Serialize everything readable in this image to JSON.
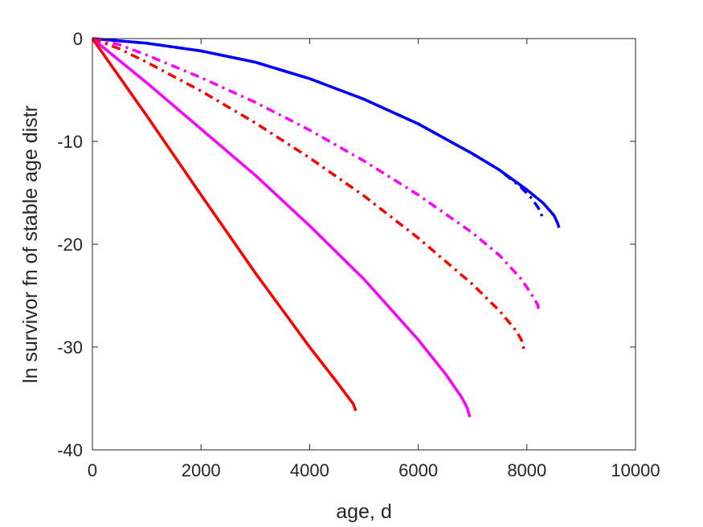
{
  "chart_data": {
    "type": "line",
    "xlabel": "age, d",
    "ylabel": "ln survivor fn of stable age distr",
    "xlim": [
      0,
      10000
    ],
    "ylim": [
      -40,
      0
    ],
    "xticks": [
      0,
      2000,
      4000,
      6000,
      8000,
      10000
    ],
    "yticks": [
      0,
      -10,
      -20,
      -30,
      -40
    ],
    "xtick_labels": [
      "0",
      "2000",
      "4000",
      "6000",
      "8000",
      "10000"
    ],
    "ytick_labels": [
      "0",
      "-10",
      "-20",
      "-30",
      "-40"
    ],
    "grid": false,
    "series": [
      {
        "color": "#0000ff",
        "style": "solid",
        "x": [
          0,
          1000,
          2000,
          3000,
          4000,
          5000,
          6000,
          7000,
          7500,
          8000,
          8300,
          8500,
          8570,
          8590
        ],
        "y": [
          0,
          -0.45,
          -1.2,
          -2.3,
          -3.9,
          -5.9,
          -8.3,
          -11.2,
          -12.8,
          -14.7,
          -16.0,
          -17.2,
          -18.0,
          -18.4
        ]
      },
      {
        "color": "#0000ff",
        "style": "dashdot",
        "x": [
          0,
          1000,
          2000,
          3000,
          4000,
          5000,
          6000,
          7000,
          7500,
          7900,
          8100,
          8250,
          8300
        ],
        "y": [
          0,
          -0.45,
          -1.2,
          -2.3,
          -3.9,
          -5.9,
          -8.3,
          -11.2,
          -12.8,
          -14.5,
          -15.6,
          -16.8,
          -17.7
        ]
      },
      {
        "color": "#ff00ff",
        "style": "dashdot",
        "x": [
          0,
          500,
          1000,
          2000,
          3000,
          4000,
          5000,
          6000,
          7000,
          7500,
          7900,
          8100,
          8200,
          8220
        ],
        "y": [
          0,
          -0.6,
          -1.6,
          -3.8,
          -6.2,
          -8.9,
          -11.9,
          -15.2,
          -18.9,
          -21.1,
          -23.4,
          -25.0,
          -25.9,
          -26.5
        ]
      },
      {
        "color": "#ff0000",
        "style": "dashdot",
        "x": [
          0,
          500,
          1000,
          2000,
          3000,
          4000,
          5000,
          6000,
          7000,
          7500,
          7800,
          7900,
          7950
        ],
        "y": [
          0,
          -1.0,
          -2.3,
          -5.1,
          -8.2,
          -11.6,
          -15.3,
          -19.4,
          -23.9,
          -26.5,
          -28.4,
          -29.3,
          -30.3
        ]
      },
      {
        "color": "#ff00ff",
        "style": "solid",
        "x": [
          0,
          1000,
          2000,
          3000,
          4000,
          5000,
          6000,
          6500,
          6800,
          6900,
          6950
        ],
        "y": [
          0,
          -4.3,
          -8.8,
          -13.3,
          -18.2,
          -23.4,
          -29.3,
          -32.6,
          -34.9,
          -35.9,
          -36.8
        ]
      },
      {
        "color": "#ff0000",
        "style": "solid",
        "x": [
          0,
          1000,
          2000,
          3000,
          4000,
          4500,
          4700,
          4800,
          4850
        ],
        "y": [
          0,
          -7.5,
          -15.2,
          -22.8,
          -30.0,
          -33.4,
          -34.8,
          -35.5,
          -36.2
        ]
      }
    ]
  }
}
